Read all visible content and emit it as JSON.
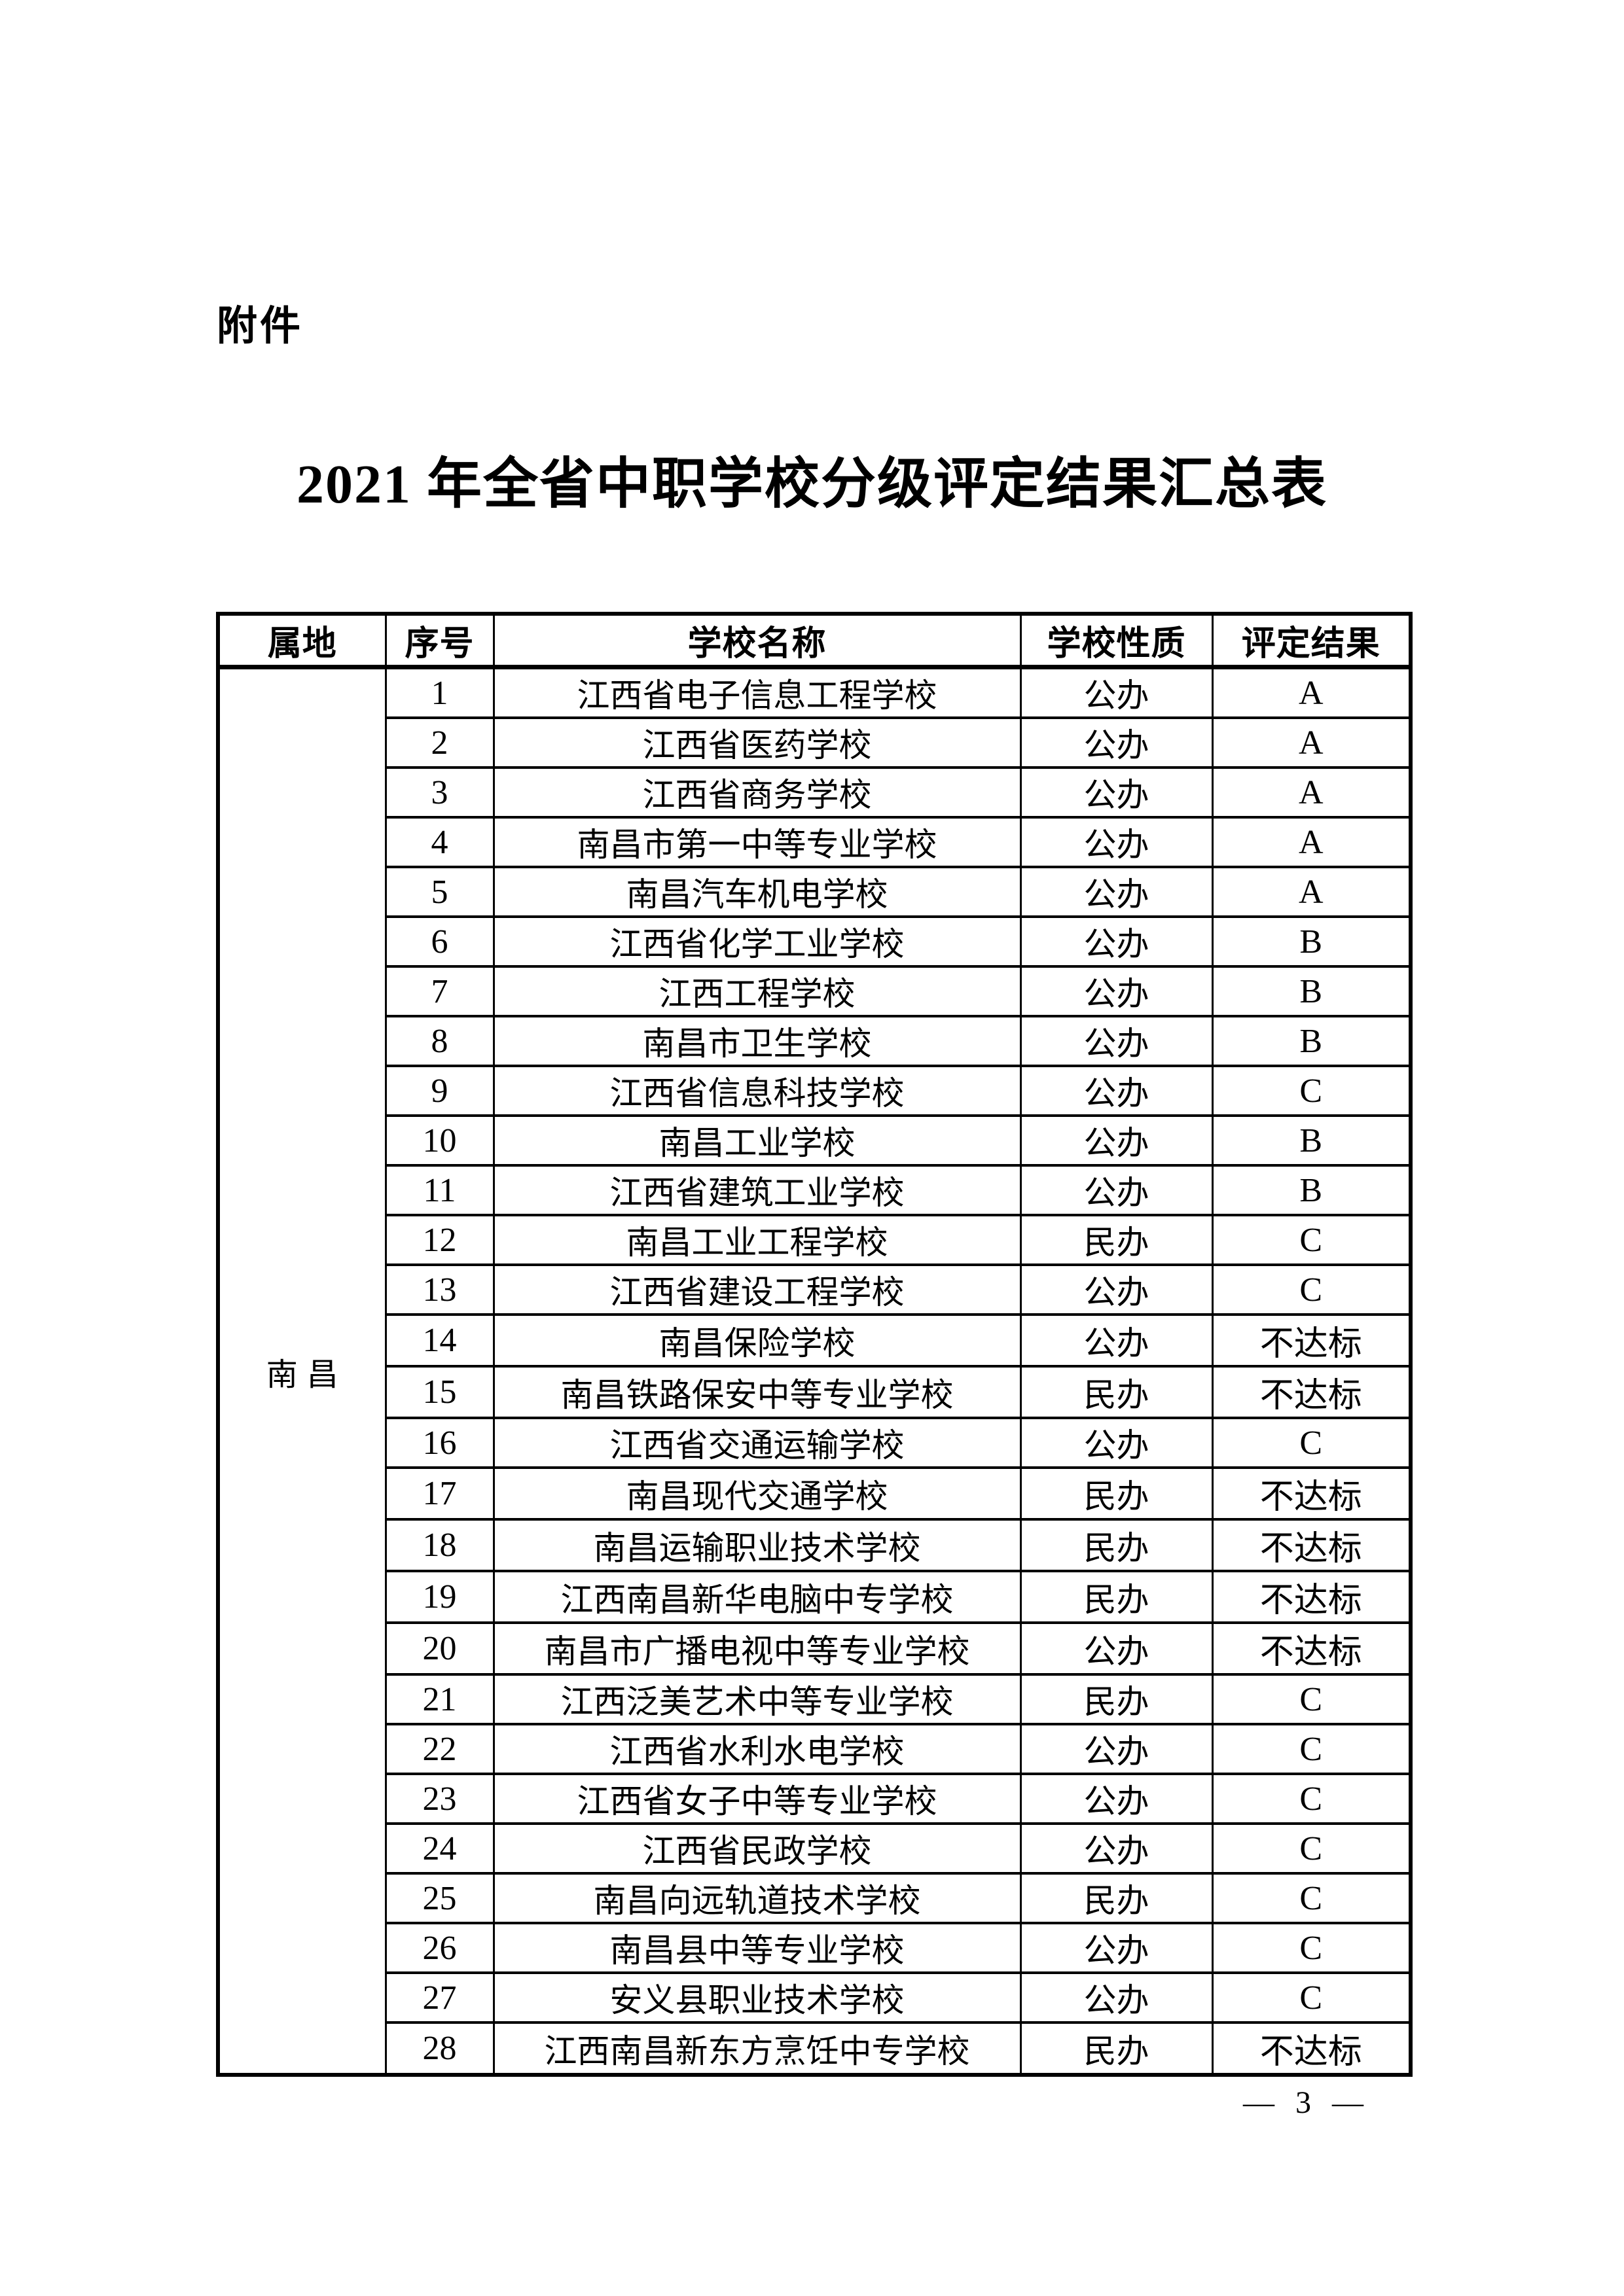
{
  "page": {
    "attachment_label": "附件",
    "title": "2021 年全省中职学校分级评定结果汇总表",
    "page_number": "— 3 —"
  },
  "table": {
    "headers": [
      "属地",
      "序号",
      "学校名称",
      "学校性质",
      "评定结果"
    ],
    "region": "南昌",
    "rows": [
      [
        "1",
        "江西省电子信息工程学校",
        "公办",
        "A"
      ],
      [
        "2",
        "江西省医药学校",
        "公办",
        "A"
      ],
      [
        "3",
        "江西省商务学校",
        "公办",
        "A"
      ],
      [
        "4",
        "南昌市第一中等专业学校",
        "公办",
        "A"
      ],
      [
        "5",
        "南昌汽车机电学校",
        "公办",
        "A"
      ],
      [
        "6",
        "江西省化学工业学校",
        "公办",
        "B"
      ],
      [
        "7",
        "江西工程学校",
        "公办",
        "B"
      ],
      [
        "8",
        "南昌市卫生学校",
        "公办",
        "B"
      ],
      [
        "9",
        "江西省信息科技学校",
        "公办",
        "C"
      ],
      [
        "10",
        "南昌工业学校",
        "公办",
        "B"
      ],
      [
        "11",
        "江西省建筑工业学校",
        "公办",
        "B"
      ],
      [
        "12",
        "南昌工业工程学校",
        "民办",
        "C"
      ],
      [
        "13",
        "江西省建设工程学校",
        "公办",
        "C"
      ],
      [
        "14",
        "南昌保险学校",
        "公办",
        "不达标"
      ],
      [
        "15",
        "南昌铁路保安中等专业学校",
        "民办",
        "不达标"
      ],
      [
        "16",
        "江西省交通运输学校",
        "公办",
        "C"
      ],
      [
        "17",
        "南昌现代交通学校",
        "民办",
        "不达标"
      ],
      [
        "18",
        "南昌运输职业技术学校",
        "民办",
        "不达标"
      ],
      [
        "19",
        "江西南昌新华电脑中专学校",
        "民办",
        "不达标"
      ],
      [
        "20",
        "南昌市广播电视中等专业学校",
        "公办",
        "不达标"
      ],
      [
        "21",
        "江西泛美艺术中等专业学校",
        "民办",
        "C"
      ],
      [
        "22",
        "江西省水利水电学校",
        "公办",
        "C"
      ],
      [
        "23",
        "江西省女子中等专业学校",
        "公办",
        "C"
      ],
      [
        "24",
        "江西省民政学校",
        "公办",
        "C"
      ],
      [
        "25",
        "南昌向远轨道技术学校",
        "民办",
        "C"
      ],
      [
        "26",
        "南昌县中等专业学校",
        "公办",
        "C"
      ],
      [
        "27",
        "安义县职业技术学校",
        "公办",
        "C"
      ],
      [
        "28",
        "江西南昌新东方烹饪中专学校",
        "民办",
        "不达标"
      ]
    ]
  }
}
